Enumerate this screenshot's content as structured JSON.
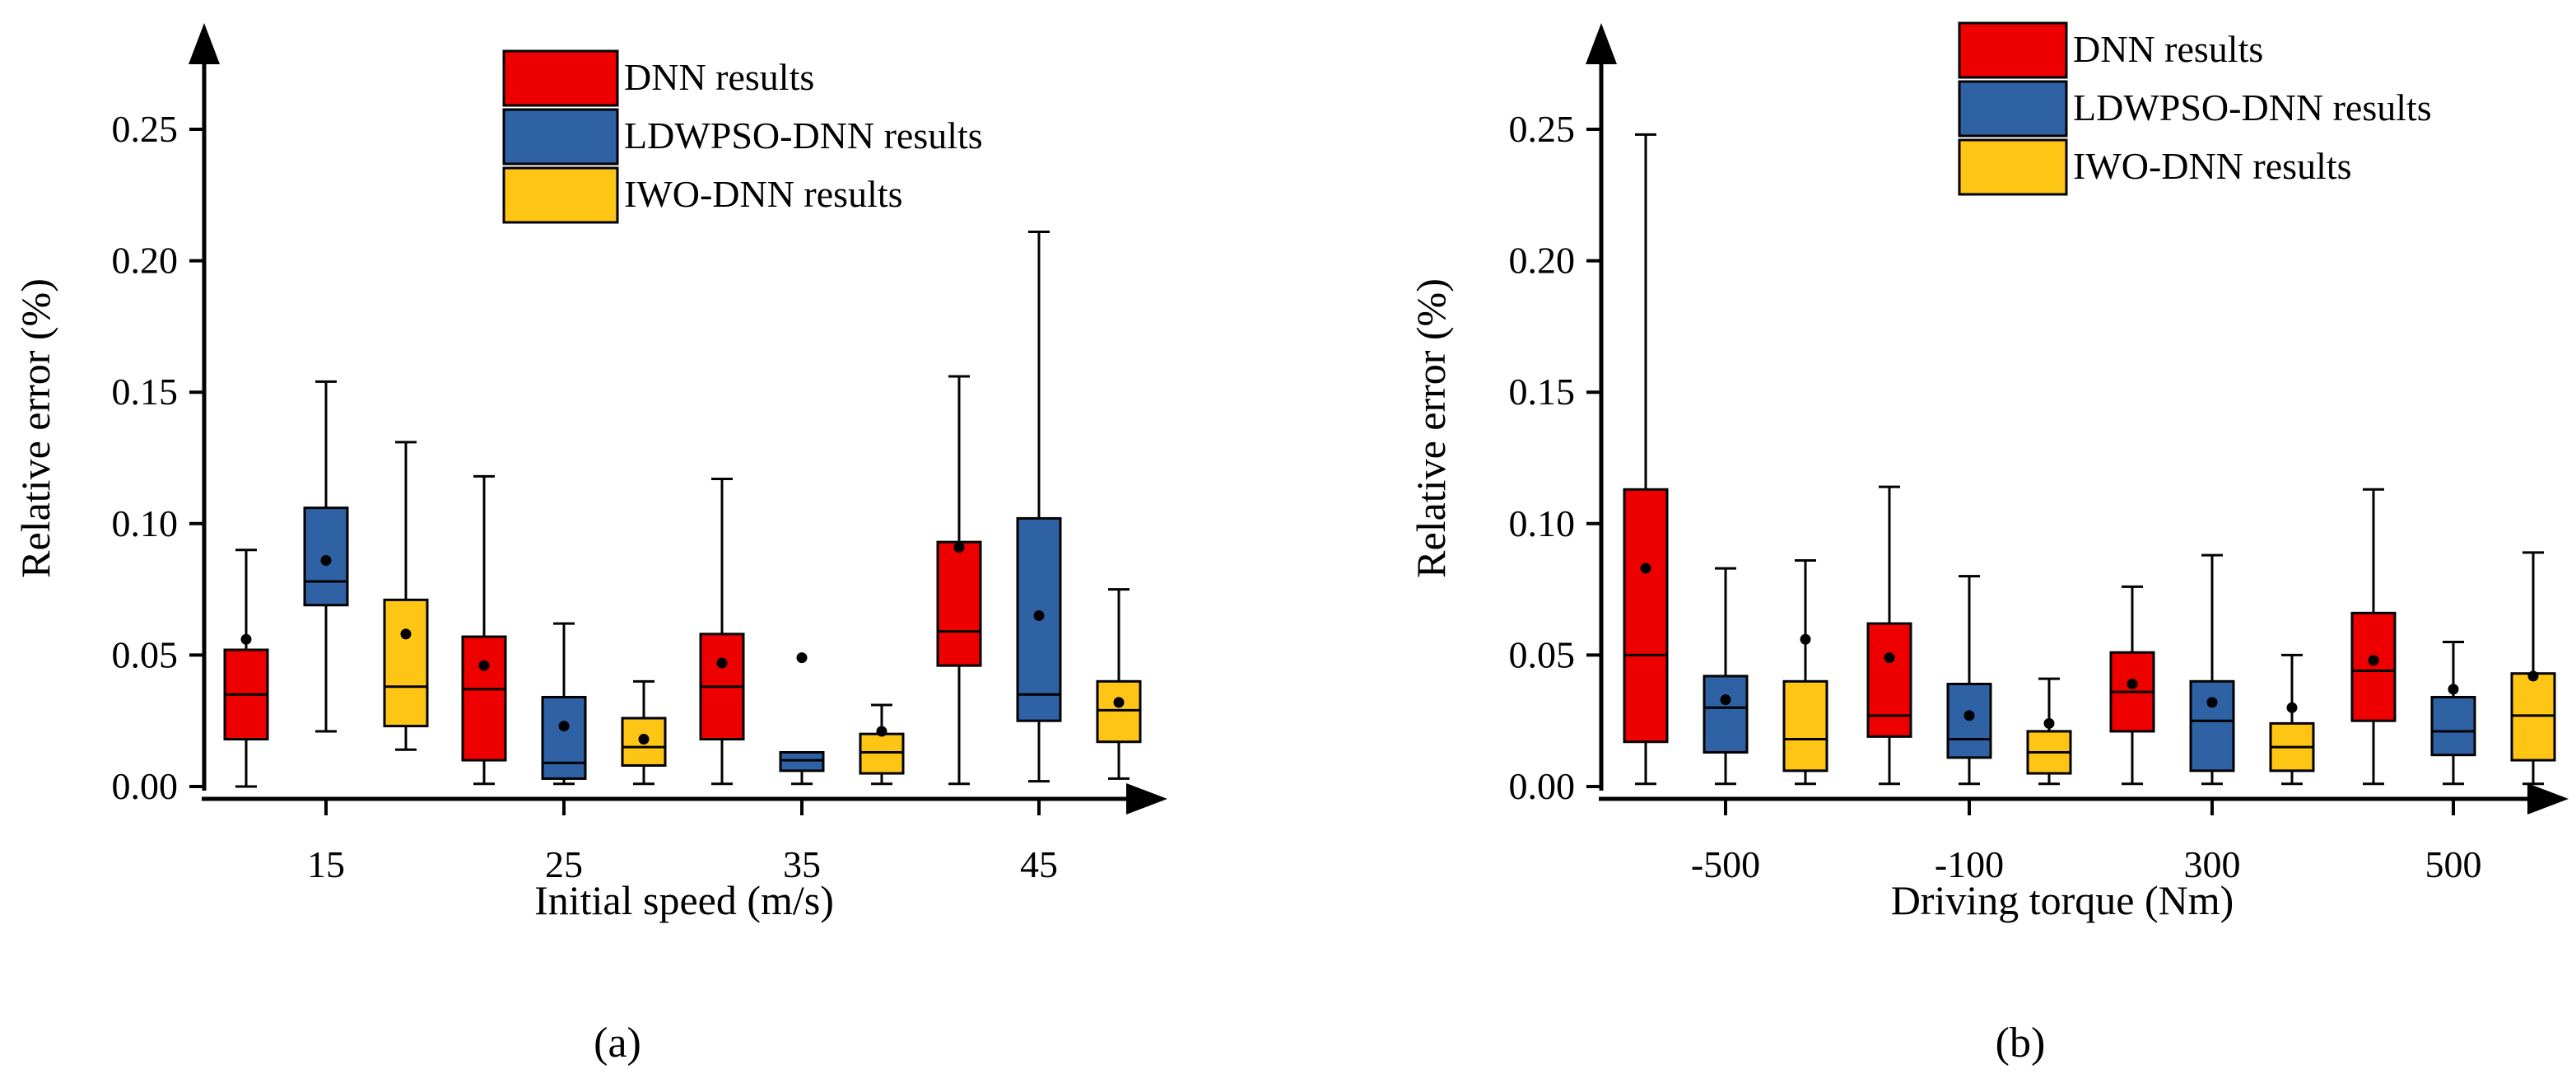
{
  "colors": {
    "dnn": "#ee0000",
    "ldwpso": "#2e62a4",
    "iwo": "#ffc515",
    "axis": "#000000"
  },
  "chart_data": [
    {
      "type": "box",
      "panel_label": "(a)",
      "xlabel": "Initial speed (m/s)",
      "ylabel": "Relative error (%)",
      "ylim": [
        0,
        0.28
      ],
      "yticks": [
        "0.00",
        "0.05",
        "0.10",
        "0.15",
        "0.20",
        "0.25"
      ],
      "legend": [
        "DNN results",
        "LDWPSO-DNN results",
        "IWO-DNN results"
      ],
      "categories": [
        "15",
        "25",
        "35",
        "45"
      ],
      "series": [
        {
          "name": "DNN results",
          "boxes": [
            {
              "min": 0.0,
              "q1": 0.018,
              "median": 0.035,
              "q3": 0.052,
              "max": 0.09,
              "mean": 0.056
            },
            {
              "min": 0.001,
              "q1": 0.01,
              "median": 0.037,
              "q3": 0.057,
              "max": 0.118,
              "mean": 0.046
            },
            {
              "min": 0.001,
              "q1": 0.018,
              "median": 0.038,
              "q3": 0.058,
              "max": 0.117,
              "mean": 0.047
            },
            {
              "min": 0.001,
              "q1": 0.046,
              "median": 0.059,
              "q3": 0.093,
              "max": 0.156,
              "mean": 0.091
            }
          ]
        },
        {
          "name": "LDWPSO-DNN results",
          "boxes": [
            {
              "min": 0.021,
              "q1": 0.069,
              "median": 0.078,
              "q3": 0.106,
              "max": 0.154,
              "mean": 0.086
            },
            {
              "min": 0.001,
              "q1": 0.003,
              "median": 0.009,
              "q3": 0.034,
              "max": 0.062,
              "mean": 0.023
            },
            {
              "min": 0.001,
              "q1": 0.006,
              "median": 0.01,
              "q3": 0.013,
              "max": 0.013,
              "mean": 0.049
            },
            {
              "min": 0.002,
              "q1": 0.025,
              "median": 0.035,
              "q3": 0.102,
              "max": 0.211,
              "mean": 0.065
            }
          ]
        },
        {
          "name": "IWO-DNN results",
          "boxes": [
            {
              "min": 0.014,
              "q1": 0.023,
              "median": 0.038,
              "q3": 0.071,
              "max": 0.131,
              "mean": 0.058
            },
            {
              "min": 0.001,
              "q1": 0.008,
              "median": 0.015,
              "q3": 0.026,
              "max": 0.04,
              "mean": 0.018
            },
            {
              "min": 0.001,
              "q1": 0.005,
              "median": 0.013,
              "q3": 0.02,
              "max": 0.031,
              "mean": 0.021
            },
            {
              "min": 0.003,
              "q1": 0.017,
              "median": 0.029,
              "q3": 0.04,
              "max": 0.075,
              "mean": 0.032
            }
          ]
        }
      ]
    },
    {
      "type": "box",
      "panel_label": "(b)",
      "xlabel": "Driving torque (Nm)",
      "ylabel": "Relative error (%)",
      "ylim": [
        0,
        0.28
      ],
      "yticks": [
        "0.00",
        "0.05",
        "0.10",
        "0.15",
        "0.20",
        "0.25"
      ],
      "legend": [
        "DNN results",
        "LDWPSO-DNN results",
        "IWO-DNN results"
      ],
      "categories": [
        "-500",
        "-100",
        "300",
        "500"
      ],
      "series": [
        {
          "name": "DNN results",
          "boxes": [
            {
              "min": 0.001,
              "q1": 0.017,
              "median": 0.05,
              "q3": 0.113,
              "max": 0.248,
              "mean": 0.083
            },
            {
              "min": 0.001,
              "q1": 0.019,
              "median": 0.027,
              "q3": 0.062,
              "max": 0.114,
              "mean": 0.049
            },
            {
              "min": 0.001,
              "q1": 0.021,
              "median": 0.036,
              "q3": 0.051,
              "max": 0.076,
              "mean": 0.039
            },
            {
              "min": 0.001,
              "q1": 0.025,
              "median": 0.044,
              "q3": 0.066,
              "max": 0.113,
              "mean": 0.048
            }
          ]
        },
        {
          "name": "LDWPSO-DNN results",
          "boxes": [
            {
              "min": 0.001,
              "q1": 0.013,
              "median": 0.03,
              "q3": 0.042,
              "max": 0.083,
              "mean": 0.033
            },
            {
              "min": 0.001,
              "q1": 0.011,
              "median": 0.018,
              "q3": 0.039,
              "max": 0.08,
              "mean": 0.027
            },
            {
              "min": 0.001,
              "q1": 0.006,
              "median": 0.025,
              "q3": 0.04,
              "max": 0.088,
              "mean": 0.032
            },
            {
              "min": 0.001,
              "q1": 0.012,
              "median": 0.021,
              "q3": 0.034,
              "max": 0.055,
              "mean": 0.037
            }
          ]
        },
        {
          "name": "IWO-DNN results",
          "boxes": [
            {
              "min": 0.001,
              "q1": 0.006,
              "median": 0.018,
              "q3": 0.04,
              "max": 0.086,
              "mean": 0.056
            },
            {
              "min": 0.001,
              "q1": 0.005,
              "median": 0.013,
              "q3": 0.021,
              "max": 0.041,
              "mean": 0.024
            },
            {
              "min": 0.001,
              "q1": 0.006,
              "median": 0.015,
              "q3": 0.024,
              "max": 0.05,
              "mean": 0.03
            },
            {
              "min": 0.001,
              "q1": 0.01,
              "median": 0.027,
              "q3": 0.043,
              "max": 0.089,
              "mean": 0.042
            }
          ]
        }
      ]
    }
  ]
}
